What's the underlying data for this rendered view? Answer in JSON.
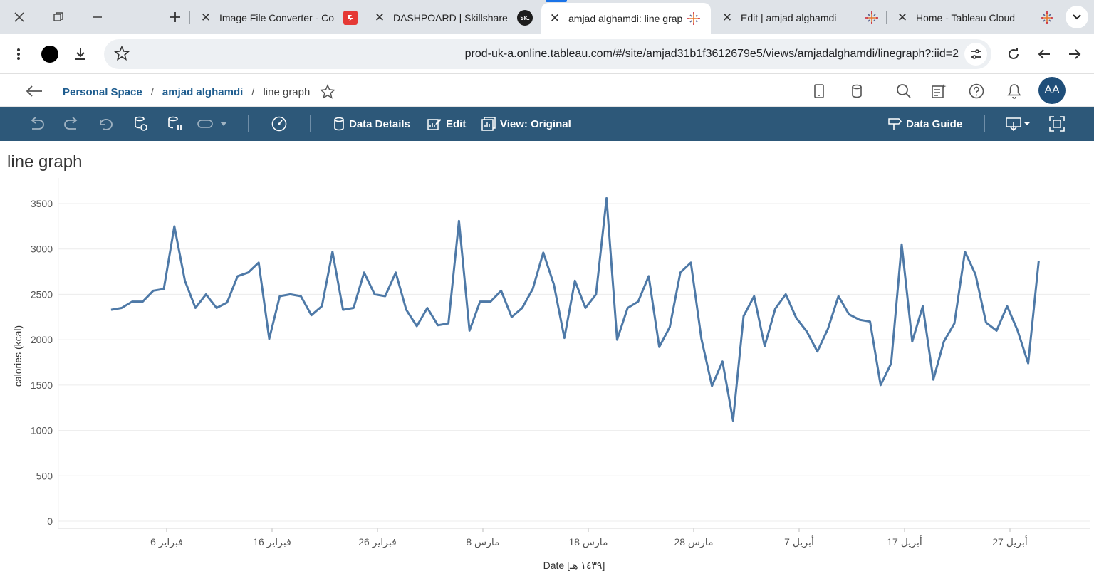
{
  "browser": {
    "tabs": [
      {
        "title": "Image File Converter - Co",
        "favicon": "converter-icon",
        "active": false
      },
      {
        "title": "DASHPOARD | Skillshare",
        "favicon": "skillshare-icon",
        "favicon_text": "SK.",
        "active": false
      },
      {
        "title": "amjad alghamdi: line grap",
        "favicon": "tableau-icon",
        "active": true
      },
      {
        "title": "Edit | amjad alghamdi",
        "favicon": "tableau-icon",
        "active": false
      },
      {
        "title": "Home - Tableau Cloud",
        "favicon": "tableau-icon",
        "active": false
      }
    ],
    "url": "prod-uk-a.online.tableau.com/#/site/amjad31b1f3612679e5/views/amjadalghamdi/linegraph?:iid=2"
  },
  "tableau": {
    "breadcrumb": {
      "personal_space": "Personal Space",
      "workbook": "amjad alghamdi",
      "view": "line graph"
    },
    "avatar_initials": "AA",
    "toolbar": {
      "data_details": "Data Details",
      "edit": "Edit",
      "view_original": "View: Original",
      "data_guide": "Data Guide"
    },
    "sheet_title": "line graph"
  },
  "colors": {
    "line": "#4e79a7",
    "toolbar_bg": "#2d5879",
    "link": "#1f5d8f"
  },
  "chart_data": {
    "type": "line",
    "xlabel": "Date [١٤٣٩ هـ]",
    "ylabel": "calories (kcal)",
    "ylim": [
      0,
      3600
    ],
    "yticks": [
      0,
      500,
      1000,
      1500,
      2000,
      2500,
      3000,
      3500
    ],
    "xticks": [
      {
        "label": "6 فبراير",
        "index": 5
      },
      {
        "label": "16 فبراير",
        "index": 15
      },
      {
        "label": "26 فبراير",
        "index": 25
      },
      {
        "label": "8 مارس",
        "index": 35
      },
      {
        "label": "18 مارس",
        "index": 45
      },
      {
        "label": "28 مارس",
        "index": 55
      },
      {
        "label": "7 أبريل",
        "index": 65
      },
      {
        "label": "17 أبريل",
        "index": 75
      },
      {
        "label": "27 أبريل",
        "index": 85
      }
    ],
    "grid": true,
    "series": [
      {
        "values": [
          2330,
          2350,
          2420,
          2420,
          2540,
          2560,
          3250,
          2650,
          2350,
          2500,
          2350,
          2410,
          2700,
          2740,
          2850,
          2010,
          2480,
          2500,
          2480,
          2270,
          2370,
          2970,
          2330,
          2350,
          2740,
          2500,
          2480,
          2740,
          2330,
          2150,
          2350,
          2160,
          2180,
          3310,
          2100,
          2420,
          2420,
          2540,
          2250,
          2350,
          2560,
          2960,
          2610,
          2020,
          2650,
          2350,
          2500,
          3560,
          2000,
          2350,
          2420,
          2700,
          1920,
          2140,
          2740,
          2850,
          2010,
          1490,
          1760,
          1110,
          2260,
          2480,
          1930,
          2340,
          2500,
          2240,
          2090,
          1870,
          2120,
          2480,
          2280,
          2220,
          2200,
          1500,
          1740,
          3050,
          1980,
          2370,
          1560,
          1980,
          2180,
          2970,
          2720,
          2190,
          2100,
          2370,
          2100,
          1740,
          2870
        ]
      }
    ]
  }
}
